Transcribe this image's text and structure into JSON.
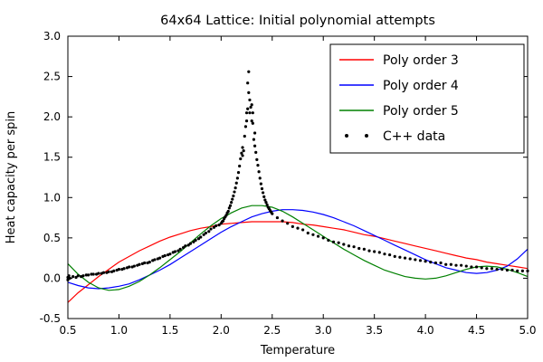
{
  "chart_data": {
    "type": "line",
    "title": "64x64 Lattice: Initial polynomial attempts",
    "xlabel": "Temperature",
    "ylabel": "Heat capacity per spin",
    "xlim": [
      0.5,
      5.0
    ],
    "ylim": [
      -0.5,
      3.0
    ],
    "xticks": [
      0.5,
      1.0,
      1.5,
      2.0,
      2.5,
      3.0,
      3.5,
      4.0,
      4.5,
      5.0
    ],
    "yticks": [
      -0.5,
      0.0,
      0.5,
      1.0,
      1.5,
      2.0,
      2.5,
      3.0
    ],
    "grid": false,
    "legend_loc": "upper right",
    "colors": {
      "poly3": "#ff0000",
      "poly4": "#0000ff",
      "poly5": "#008000",
      "data": "#000000"
    },
    "x": [
      0.5,
      0.6,
      0.7,
      0.8,
      0.9,
      1.0,
      1.1,
      1.2,
      1.3,
      1.4,
      1.5,
      1.6,
      1.7,
      1.8,
      1.9,
      2.0,
      2.1,
      2.2,
      2.3,
      2.4,
      2.5,
      2.6,
      2.7,
      2.8,
      2.9,
      3.0,
      3.1,
      3.2,
      3.3,
      3.4,
      3.5,
      3.6,
      3.7,
      3.8,
      3.9,
      4.0,
      4.1,
      4.2,
      4.3,
      4.4,
      4.5,
      4.6,
      4.7,
      4.8,
      4.9,
      5.0
    ],
    "series": [
      {
        "name": "Poly order 3",
        "type": "line",
        "color": "#ff0000",
        "values": [
          -0.3,
          -0.18,
          -0.08,
          0.02,
          0.11,
          0.2,
          0.27,
          0.34,
          0.4,
          0.46,
          0.51,
          0.55,
          0.59,
          0.62,
          0.64,
          0.67,
          0.68,
          0.69,
          0.7,
          0.7,
          0.7,
          0.7,
          0.69,
          0.67,
          0.66,
          0.64,
          0.62,
          0.6,
          0.57,
          0.54,
          0.52,
          0.49,
          0.46,
          0.43,
          0.4,
          0.37,
          0.34,
          0.31,
          0.28,
          0.25,
          0.23,
          0.2,
          0.18,
          0.16,
          0.14,
          0.12
        ]
      },
      {
        "name": "Poly order 4",
        "type": "line",
        "color": "#0000ff",
        "values": [
          -0.05,
          -0.09,
          -0.12,
          -0.13,
          -0.12,
          -0.1,
          -0.07,
          -0.02,
          0.04,
          0.1,
          0.17,
          0.25,
          0.33,
          0.41,
          0.49,
          0.57,
          0.64,
          0.7,
          0.76,
          0.8,
          0.83,
          0.85,
          0.85,
          0.84,
          0.82,
          0.79,
          0.75,
          0.7,
          0.65,
          0.59,
          0.53,
          0.47,
          0.41,
          0.35,
          0.29,
          0.23,
          0.18,
          0.13,
          0.1,
          0.07,
          0.06,
          0.07,
          0.1,
          0.15,
          0.24,
          0.36
        ]
      },
      {
        "name": "Poly order 5",
        "type": "line",
        "color": "#008000",
        "values": [
          0.18,
          0.05,
          -0.05,
          -0.12,
          -0.15,
          -0.14,
          -0.1,
          -0.04,
          0.04,
          0.13,
          0.23,
          0.33,
          0.44,
          0.55,
          0.65,
          0.74,
          0.81,
          0.87,
          0.9,
          0.9,
          0.88,
          0.83,
          0.76,
          0.68,
          0.6,
          0.52,
          0.44,
          0.36,
          0.29,
          0.22,
          0.16,
          0.1,
          0.06,
          0.02,
          0.0,
          -0.01,
          0.0,
          0.03,
          0.07,
          0.11,
          0.14,
          0.15,
          0.14,
          0.11,
          0.07,
          0.02
        ]
      },
      {
        "name": "C++ data",
        "type": "scatter",
        "color": "#000000",
        "points": [
          [
            0.5,
            -0.02
          ],
          [
            0.5,
            0.01
          ],
          [
            0.51,
            0.03
          ],
          [
            0.52,
            0.0
          ],
          [
            0.55,
            0.02
          ],
          [
            0.58,
            0.01
          ],
          [
            0.6,
            0.03
          ],
          [
            0.63,
            0.02
          ],
          [
            0.65,
            0.03
          ],
          [
            0.68,
            0.04
          ],
          [
            0.7,
            0.04
          ],
          [
            0.73,
            0.05
          ],
          [
            0.75,
            0.05
          ],
          [
            0.78,
            0.05
          ],
          [
            0.8,
            0.06
          ],
          [
            0.83,
            0.06
          ],
          [
            0.85,
            0.07
          ],
          [
            0.88,
            0.07
          ],
          [
            0.9,
            0.08
          ],
          [
            0.93,
            0.08
          ],
          [
            0.95,
            0.09
          ],
          [
            0.98,
            0.1
          ],
          [
            1.0,
            0.11
          ],
          [
            1.03,
            0.11
          ],
          [
            1.05,
            0.12
          ],
          [
            1.08,
            0.13
          ],
          [
            1.1,
            0.14
          ],
          [
            1.13,
            0.14
          ],
          [
            1.15,
            0.15
          ],
          [
            1.18,
            0.16
          ],
          [
            1.2,
            0.17
          ],
          [
            1.23,
            0.18
          ],
          [
            1.25,
            0.19
          ],
          [
            1.28,
            0.19
          ],
          [
            1.3,
            0.2
          ],
          [
            1.33,
            0.22
          ],
          [
            1.35,
            0.23
          ],
          [
            1.38,
            0.24
          ],
          [
            1.4,
            0.25
          ],
          [
            1.43,
            0.27
          ],
          [
            1.45,
            0.28
          ],
          [
            1.48,
            0.29
          ],
          [
            1.5,
            0.3
          ],
          [
            1.53,
            0.32
          ],
          [
            1.55,
            0.33
          ],
          [
            1.58,
            0.34
          ],
          [
            1.6,
            0.36
          ],
          [
            1.63,
            0.38
          ],
          [
            1.65,
            0.4
          ],
          [
            1.68,
            0.41
          ],
          [
            1.7,
            0.43
          ],
          [
            1.73,
            0.45
          ],
          [
            1.75,
            0.47
          ],
          [
            1.78,
            0.49
          ],
          [
            1.8,
            0.51
          ],
          [
            1.83,
            0.54
          ],
          [
            1.85,
            0.56
          ],
          [
            1.88,
            0.58
          ],
          [
            1.9,
            0.61
          ],
          [
            1.93,
            0.63
          ],
          [
            1.95,
            0.65
          ],
          [
            1.98,
            0.66
          ],
          [
            2.0,
            0.68
          ],
          [
            2.01,
            0.7
          ],
          [
            2.02,
            0.71
          ],
          [
            2.03,
            0.74
          ],
          [
            2.04,
            0.76
          ],
          [
            2.05,
            0.78
          ],
          [
            2.06,
            0.81
          ],
          [
            2.07,
            0.83
          ],
          [
            2.08,
            0.87
          ],
          [
            2.09,
            0.9
          ],
          [
            2.1,
            0.94
          ],
          [
            2.11,
            0.98
          ],
          [
            2.12,
            1.02
          ],
          [
            2.13,
            1.07
          ],
          [
            2.14,
            1.12
          ],
          [
            2.15,
            1.18
          ],
          [
            2.16,
            1.24
          ],
          [
            2.17,
            1.31
          ],
          [
            2.18,
            1.39
          ],
          [
            2.19,
            1.48
          ],
          [
            2.2,
            1.55
          ],
          [
            2.21,
            1.52
          ],
          [
            2.21,
            1.62
          ],
          [
            2.22,
            1.58
          ],
          [
            2.23,
            1.76
          ],
          [
            2.24,
            1.88
          ],
          [
            2.25,
            1.95
          ],
          [
            2.25,
            2.05
          ],
          [
            2.26,
            2.1
          ],
          [
            2.26,
            2.42
          ],
          [
            2.27,
            2.3
          ],
          [
            2.27,
            2.56
          ],
          [
            2.28,
            2.05
          ],
          [
            2.28,
            2.21
          ],
          [
            2.29,
            2.12
          ],
          [
            2.3,
            1.95
          ],
          [
            2.3,
            2.15
          ],
          [
            2.31,
            1.92
          ],
          [
            2.31,
            2.05
          ],
          [
            2.32,
            1.72
          ],
          [
            2.33,
            1.64
          ],
          [
            2.33,
            1.8
          ],
          [
            2.34,
            1.56
          ],
          [
            2.35,
            1.47
          ],
          [
            2.36,
            1.4
          ],
          [
            2.37,
            1.32
          ],
          [
            2.38,
            1.24
          ],
          [
            2.39,
            1.17
          ],
          [
            2.4,
            1.11
          ],
          [
            2.41,
            1.06
          ],
          [
            2.42,
            1.01
          ],
          [
            2.43,
            0.97
          ],
          [
            2.44,
            0.94
          ],
          [
            2.45,
            0.91
          ],
          [
            2.46,
            0.88
          ],
          [
            2.47,
            0.86
          ],
          [
            2.48,
            0.84
          ],
          [
            2.49,
            0.82
          ],
          [
            2.5,
            0.8
          ],
          [
            2.55,
            0.75
          ],
          [
            2.6,
            0.71
          ],
          [
            2.65,
            0.68
          ],
          [
            2.7,
            0.64
          ],
          [
            2.75,
            0.62
          ],
          [
            2.8,
            0.6
          ],
          [
            2.85,
            0.56
          ],
          [
            2.9,
            0.54
          ],
          [
            2.95,
            0.52
          ],
          [
            3.0,
            0.5
          ],
          [
            3.05,
            0.47
          ],
          [
            3.1,
            0.45
          ],
          [
            3.15,
            0.44
          ],
          [
            3.2,
            0.42
          ],
          [
            3.25,
            0.4
          ],
          [
            3.3,
            0.39
          ],
          [
            3.35,
            0.37
          ],
          [
            3.4,
            0.36
          ],
          [
            3.45,
            0.34
          ],
          [
            3.5,
            0.33
          ],
          [
            3.55,
            0.32
          ],
          [
            3.6,
            0.3
          ],
          [
            3.65,
            0.29
          ],
          [
            3.7,
            0.27
          ],
          [
            3.75,
            0.26
          ],
          [
            3.8,
            0.25
          ],
          [
            3.85,
            0.24
          ],
          [
            3.9,
            0.23
          ],
          [
            3.95,
            0.22
          ],
          [
            4.0,
            0.21
          ],
          [
            4.05,
            0.2
          ],
          [
            4.1,
            0.19
          ],
          [
            4.15,
            0.19
          ],
          [
            4.2,
            0.17
          ],
          [
            4.25,
            0.17
          ],
          [
            4.3,
            0.16
          ],
          [
            4.35,
            0.16
          ],
          [
            4.4,
            0.15
          ],
          [
            4.45,
            0.14
          ],
          [
            4.5,
            0.14
          ],
          [
            4.55,
            0.13
          ],
          [
            4.6,
            0.12
          ],
          [
            4.65,
            0.12
          ],
          [
            4.7,
            0.11
          ],
          [
            4.75,
            0.11
          ],
          [
            4.8,
            0.1
          ],
          [
            4.85,
            0.1
          ],
          [
            4.9,
            0.09
          ],
          [
            4.95,
            0.09
          ],
          [
            5.0,
            0.09
          ]
        ]
      }
    ]
  }
}
